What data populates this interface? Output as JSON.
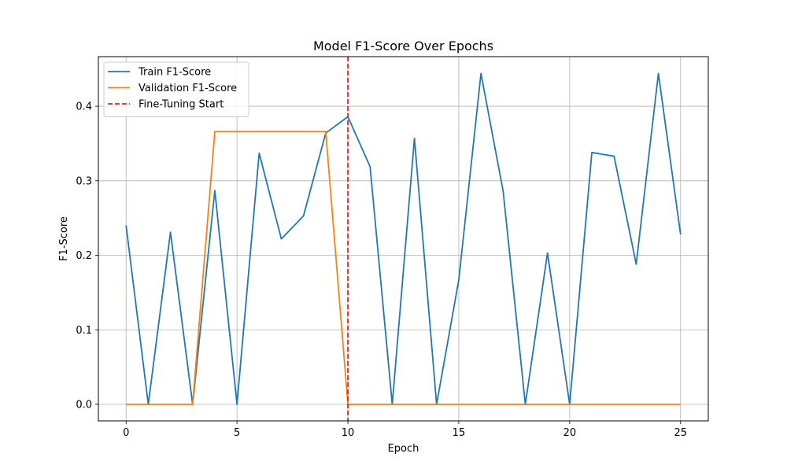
{
  "chart_data": {
    "type": "line",
    "title": "Model F1-Score Over Epochs",
    "xlabel": "Epoch",
    "ylabel": "F1-Score",
    "xlim": [
      -1.25,
      26.25
    ],
    "ylim": [
      -0.0222,
      0.4666
    ],
    "xticks": [
      0,
      5,
      10,
      15,
      20,
      25
    ],
    "xtick_labels": [
      "0",
      "5",
      "10",
      "15",
      "20",
      "25"
    ],
    "yticks": [
      0.0,
      0.1,
      0.2,
      0.3,
      0.4
    ],
    "ytick_labels": [
      "0.0",
      "0.1",
      "0.2",
      "0.3",
      "0.4"
    ],
    "grid": true,
    "legend_position": "top-left",
    "x": [
      0,
      1,
      2,
      3,
      4,
      5,
      6,
      7,
      8,
      9,
      10,
      11,
      12,
      13,
      14,
      15,
      16,
      17,
      18,
      19,
      20,
      21,
      22,
      23,
      24,
      25
    ],
    "series": [
      {
        "name": "Train F1-Score",
        "color": "#1f77b4",
        "style": "solid",
        "values": [
          0.24,
          0.0,
          0.231,
          0.0,
          0.287,
          0.0,
          0.337,
          0.222,
          0.253,
          0.364,
          0.386,
          0.319,
          0.0,
          0.357,
          0.0,
          0.167,
          0.444,
          0.286,
          0.0,
          0.203,
          0.0,
          0.338,
          0.333,
          0.188,
          0.444,
          0.228
        ]
      },
      {
        "name": "Validation F1-Score",
        "color": "#ff7f0e",
        "style": "solid",
        "values": [
          0.0,
          0.0,
          0.0,
          0.0,
          0.366,
          0.366,
          0.366,
          0.366,
          0.366,
          0.366,
          0.0,
          0.0,
          0.0,
          0.0,
          0.0,
          0.0,
          0.0,
          0.0,
          0.0,
          0.0,
          0.0,
          0.0,
          0.0,
          0.0,
          0.0,
          0.0
        ]
      }
    ],
    "vlines": [
      {
        "name": "Fine-Tuning Start",
        "x": 10,
        "color": "#d62728",
        "style": "dashed"
      }
    ]
  }
}
